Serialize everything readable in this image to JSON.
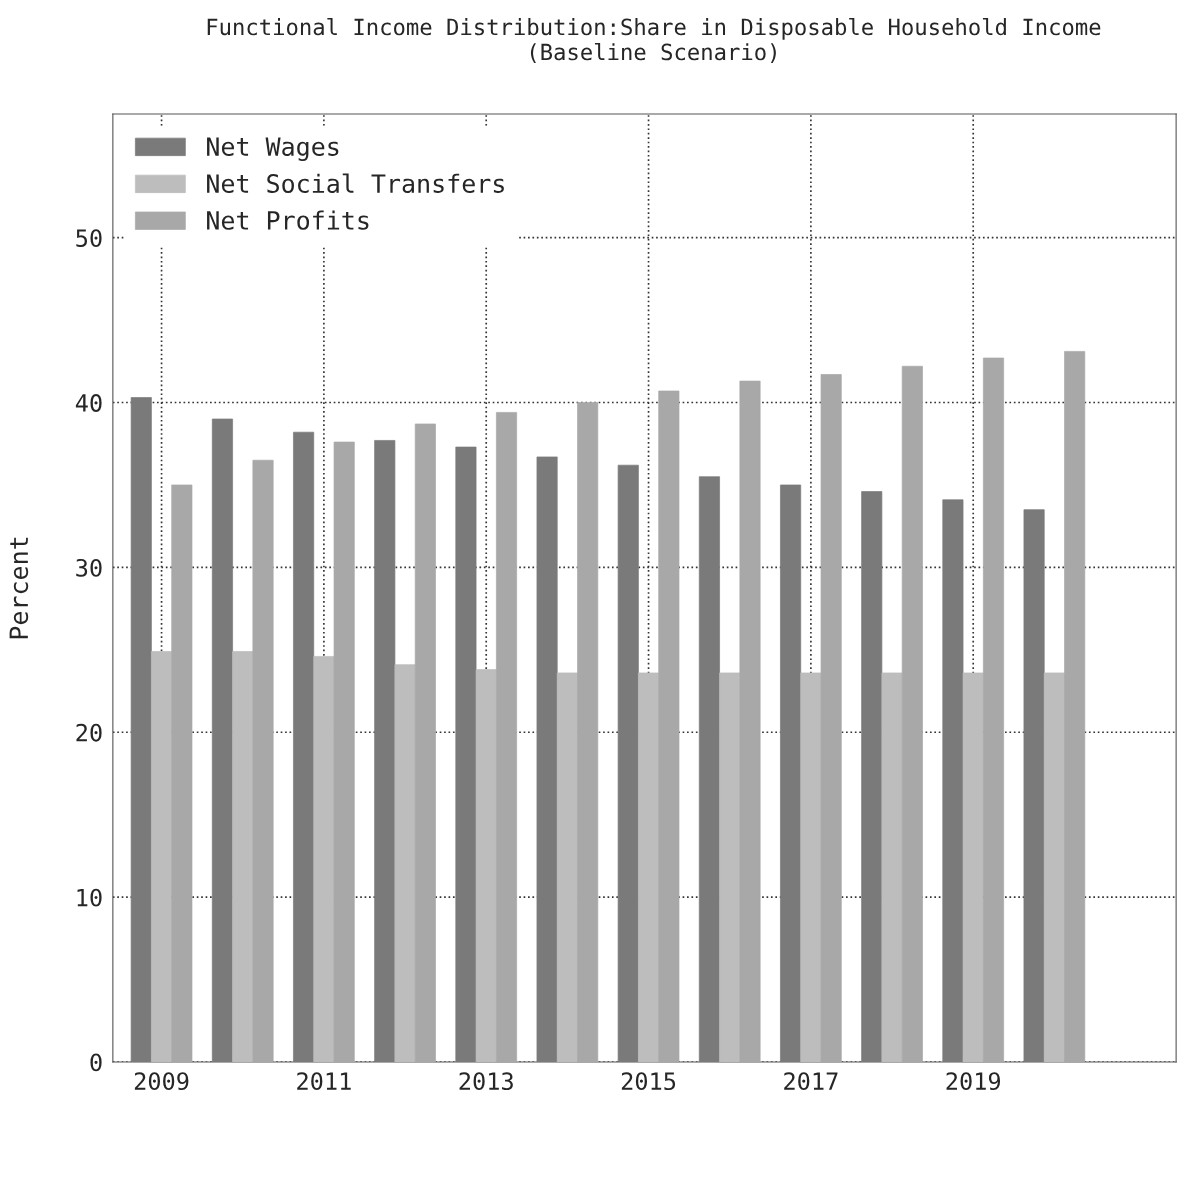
{
  "chart_data": {
    "type": "bar",
    "title": "Functional Income Distribution:Share in Disposable Household Income\n(Baseline Scenario)",
    "ylabel": "Percent",
    "categories": [
      "2009",
      null,
      "2011",
      null,
      "2013",
      null,
      "2015",
      null,
      "2017",
      null,
      "2019",
      null
    ],
    "series": [
      {
        "name": "Net Wages",
        "color": "#7a7a7a",
        "values": [
          40.3,
          39.0,
          38.2,
          37.7,
          37.3,
          36.7,
          36.2,
          35.5,
          35.0,
          34.6,
          34.1,
          33.5
        ]
      },
      {
        "name": "Net Social Transfers",
        "color": "#bdbdbd",
        "values": [
          24.9,
          24.9,
          24.6,
          24.1,
          23.8,
          23.6,
          23.6,
          23.6,
          23.6,
          23.6,
          23.6,
          23.6
        ]
      },
      {
        "name": "Net Profits",
        "color": "#a8a8a8",
        "values": [
          35.0,
          36.5,
          37.6,
          38.7,
          39.4,
          40.0,
          40.7,
          41.3,
          41.7,
          42.2,
          42.7,
          43.1
        ]
      }
    ],
    "ylim": [
      0,
      57.5
    ],
    "yticks": [
      0,
      10,
      20,
      30,
      40,
      50
    ],
    "grid": true,
    "legend": "top left"
  }
}
